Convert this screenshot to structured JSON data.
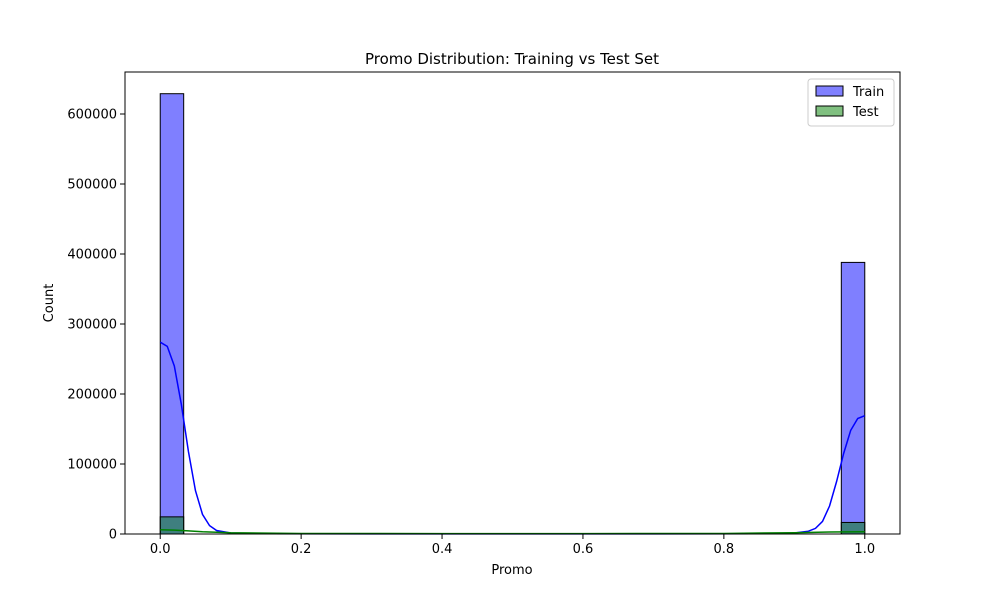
{
  "chart_data": {
    "type": "bar",
    "title": "Promo Distribution: Training vs Test Set",
    "xlabel": "Promo",
    "ylabel": "Count",
    "xlim": [
      -0.05,
      1.05
    ],
    "ylim": [
      0,
      660000
    ],
    "x_ticks": [
      0.0,
      0.2,
      0.4,
      0.6,
      0.8,
      1.0
    ],
    "x_tick_labels": [
      "0.0",
      "0.2",
      "0.4",
      "0.6",
      "0.8",
      "1.0"
    ],
    "y_ticks": [
      0,
      100000,
      200000,
      300000,
      400000,
      500000,
      600000
    ],
    "y_tick_labels": [
      "0",
      "100000",
      "200000",
      "300000",
      "400000",
      "500000",
      "600000"
    ],
    "grid": false,
    "legend": "top-right",
    "bins": 30,
    "series": [
      {
        "name": "Train",
        "color": "#0000ff",
        "fill": "#8080ff",
        "bars": [
          {
            "x0": 0.0,
            "x1": 0.0333,
            "count": 629000
          },
          {
            "x0": 0.9667,
            "x1": 1.0,
            "count": 388000
          }
        ],
        "kde": [
          [
            0.0,
            274000
          ],
          [
            0.01,
            268000
          ],
          [
            0.02,
            240000
          ],
          [
            0.03,
            185000
          ],
          [
            0.04,
            118000
          ],
          [
            0.05,
            62000
          ],
          [
            0.06,
            28000
          ],
          [
            0.07,
            12000
          ],
          [
            0.08,
            5000
          ],
          [
            0.1,
            1500
          ],
          [
            0.15,
            400
          ],
          [
            0.3,
            200
          ],
          [
            0.5,
            200
          ],
          [
            0.7,
            200
          ],
          [
            0.85,
            400
          ],
          [
            0.9,
            1500
          ],
          [
            0.92,
            4000
          ],
          [
            0.93,
            8000
          ],
          [
            0.94,
            18000
          ],
          [
            0.95,
            40000
          ],
          [
            0.96,
            75000
          ],
          [
            0.97,
            115000
          ],
          [
            0.98,
            148000
          ],
          [
            0.99,
            165000
          ],
          [
            1.0,
            169000
          ]
        ]
      },
      {
        "name": "Test",
        "color": "#008000",
        "fill": "#80c080",
        "bars": [
          {
            "x0": 0.0,
            "x1": 0.0333,
            "count": 24500
          },
          {
            "x0": 0.9667,
            "x1": 1.0,
            "count": 16500
          }
        ],
        "kde": [
          [
            0.0,
            6000
          ],
          [
            0.02,
            5500
          ],
          [
            0.04,
            4500
          ],
          [
            0.06,
            3200
          ],
          [
            0.1,
            1800
          ],
          [
            0.2,
            800
          ],
          [
            0.4,
            600
          ],
          [
            0.6,
            600
          ],
          [
            0.8,
            800
          ],
          [
            0.9,
            1800
          ],
          [
            0.95,
            2800
          ],
          [
            1.0,
            3200
          ]
        ]
      }
    ]
  }
}
